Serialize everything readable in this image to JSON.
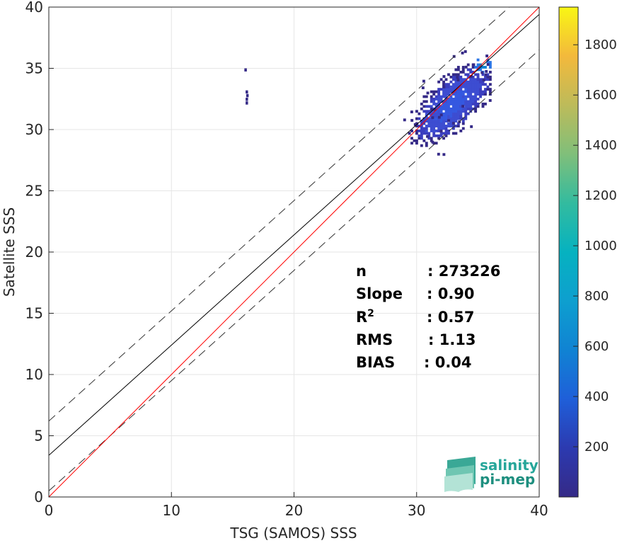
{
  "chart_data": {
    "type": "heatmap",
    "xlabel": "TSG (SAMOS) SSS",
    "ylabel": "Satellite SSS",
    "xlim": [
      0,
      40
    ],
    "ylim": [
      0,
      40
    ],
    "xticks": [
      0,
      10,
      20,
      30,
      40
    ],
    "yticks": [
      0,
      5,
      10,
      15,
      20,
      25,
      30,
      35,
      40
    ],
    "grid": true,
    "colormap": "parula",
    "colorbar": {
      "range": [
        0,
        1950
      ],
      "ticks": [
        200,
        400,
        600,
        800,
        1000,
        1200,
        1400,
        1600,
        1800
      ]
    },
    "density_clusters": [
      {
        "x": [
          28.5,
          36
        ],
        "y": [
          27,
          36.5
        ],
        "peak_x": 35.3,
        "peak_y": 35.2
      },
      {
        "x": [
          16,
          16.2
        ],
        "y": [
          32,
          33.2
        ]
      }
    ],
    "lines": {
      "one_to_one": {
        "slope": 1.0,
        "intercept": 0,
        "color": "#ff0000"
      },
      "fit": {
        "slope": 0.9,
        "intercept": 3.4,
        "color": "#000000"
      },
      "fit_upper": {
        "slope": 0.9,
        "intercept": 6.2,
        "style": "dashed"
      },
      "fit_lower": {
        "slope": 0.9,
        "intercept": 0.5,
        "style": "dashed"
      }
    },
    "stats": [
      {
        "label": "n",
        "value": ": 273226"
      },
      {
        "label": "Slope",
        "value": ": 0.90"
      },
      {
        "label": "R",
        "sup": "2",
        "value": ": 0.57"
      },
      {
        "label": "RMS",
        "value": ": 1.13"
      },
      {
        "label": "BIAS",
        "value": ": 0.04"
      }
    ]
  },
  "logo": {
    "line1": "salinity",
    "line2": "pi-mep"
  }
}
